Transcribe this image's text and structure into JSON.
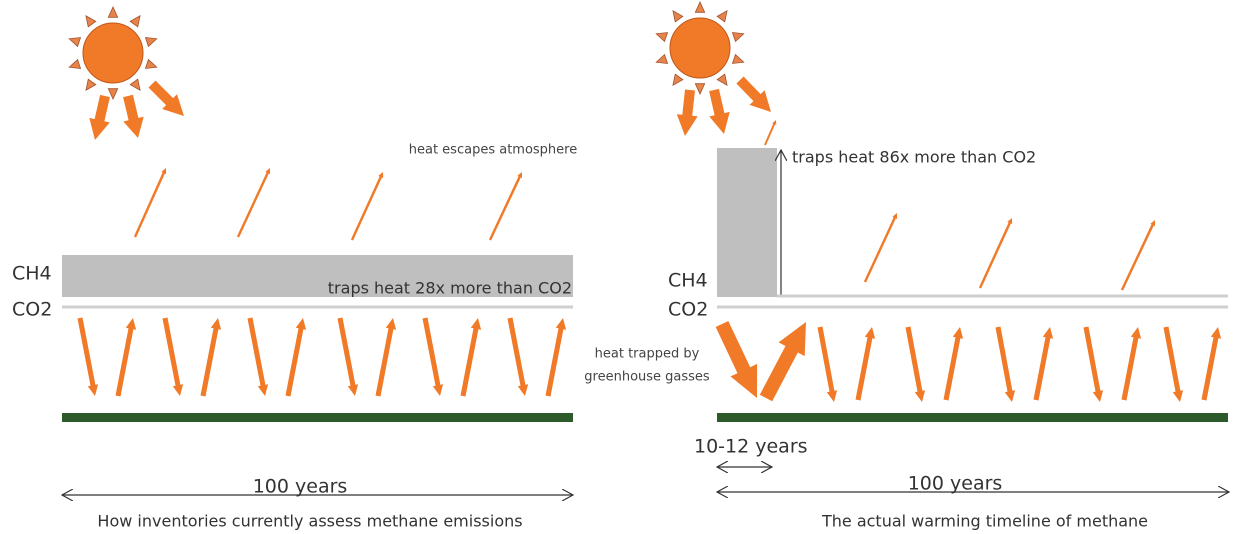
{
  "left": {
    "escape_label": "heat escapes atmosphere",
    "ch4_label": "CH4",
    "co2_label": "CO2",
    "traps_label": "traps heat 28x more than CO2",
    "span_label": "100 years",
    "caption": "How inventories currently assess methane emissions"
  },
  "middle": {
    "trapped_label_line1": "heat trapped by",
    "trapped_label_line2": "greenhouse gasses"
  },
  "right": {
    "traps_label": "traps heat 86x more than CO2",
    "ch4_label": "CH4",
    "co2_label": "CO2",
    "short_span_label": "10-12 years",
    "span_label": "100 years",
    "caption": "The actual warming timeline of methane"
  }
}
